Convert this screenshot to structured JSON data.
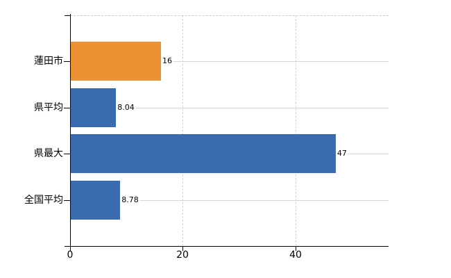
{
  "chart_data": {
    "type": "bar",
    "orientation": "horizontal",
    "title": "",
    "categories": [
      "蓮田市",
      "県平均",
      "県最大",
      "全国平均"
    ],
    "values": [
      16,
      8.04,
      47,
      8.78
    ],
    "value_labels": [
      "16",
      "8.04",
      "47",
      "8.78"
    ],
    "bar_colors": [
      "#EC9234",
      "#396BAF",
      "#396BAF",
      "#396BAF"
    ],
    "x_tick_labels": [
      "0",
      "20",
      "40"
    ],
    "x_tick_values": [
      0,
      20,
      40
    ],
    "xlim": [
      0,
      56.5
    ],
    "grid": "dashed vertical gridlines at 20 and 40; dashed top border; light horizontal leader line from each value label to plot right edge",
    "legend": "none"
  },
  "colors": {
    "bar_orange": "#EC9234",
    "bar_blue": "#396BAF",
    "axis": "#000000",
    "gridline": "#d2d2d2",
    "leader_line": "#d3d8d0",
    "background": "#ffffff",
    "text": "#000000"
  }
}
